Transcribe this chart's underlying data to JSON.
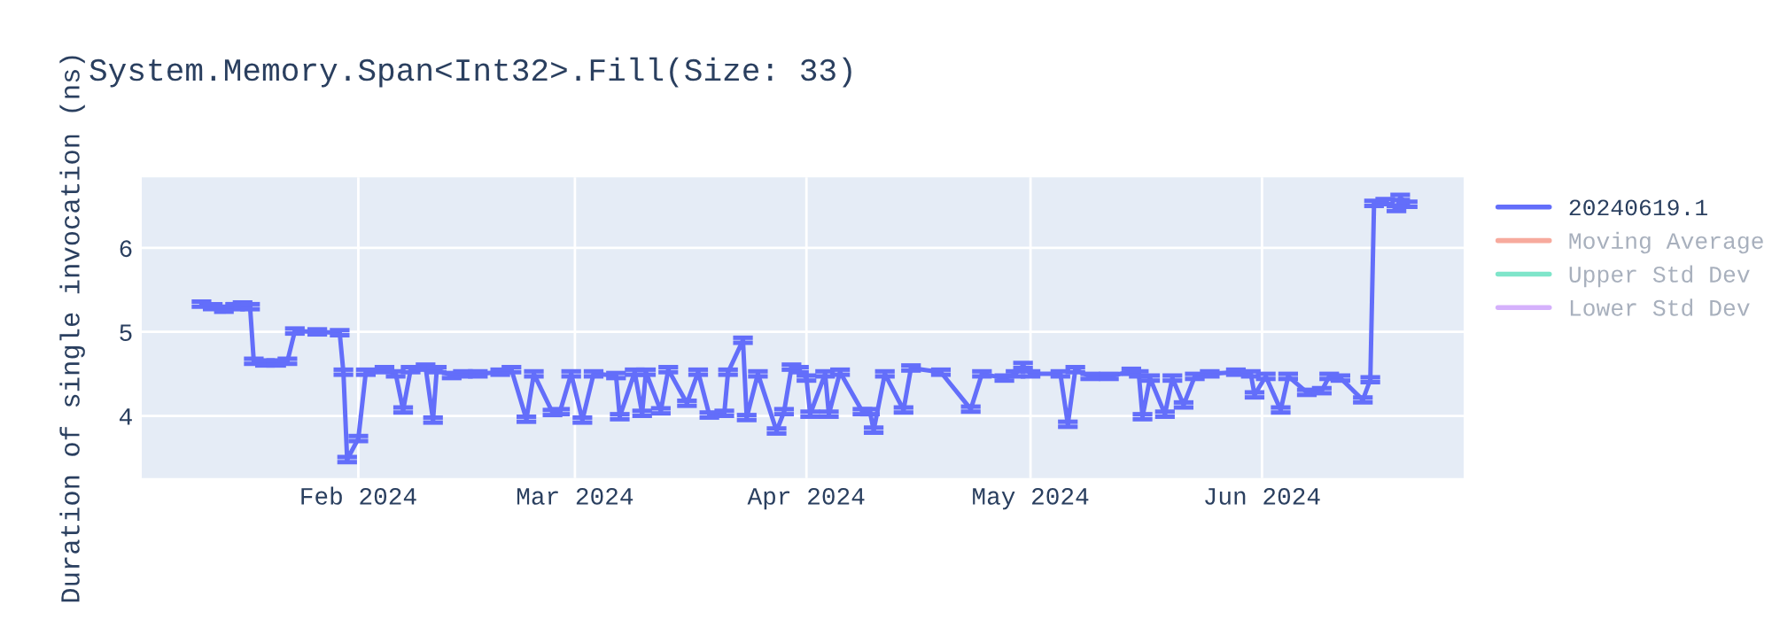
{
  "chart_data": {
    "type": "line",
    "title": "System.Memory.Span<Int32>.Fill(Size: 33)",
    "ylabel": "Duration of single invocation (ns)",
    "x": [
      "2024-01-11",
      "2024-01-12T12:00",
      "2024-01-14",
      "2024-01-15T12:00",
      "2024-01-16T12:00",
      "2024-01-17T12:00",
      "2024-01-18",
      "2024-01-19T12:00",
      "2024-01-21",
      "2024-01-22T12:00",
      "2024-01-23T12:00",
      "2024-01-26T12:00",
      "2024-01-29T12:00",
      "2024-01-30",
      "2024-01-30T12:00",
      "2024-02-01",
      "2024-02-02",
      "2024-02-04T12:00",
      "2024-02-06",
      "2024-02-07",
      "2024-02-08",
      "2024-02-10",
      "2024-02-11",
      "2024-02-11T12:00",
      "2024-02-13T12:00",
      "2024-02-15",
      "2024-02-17",
      "2024-02-20",
      "2024-02-21T12:00",
      "2024-02-23T12:00",
      "2024-02-24T12:00",
      "2024-02-27",
      "2024-02-28",
      "2024-02-29T12:00",
      "2024-03-02",
      "2024-03-03T12:00",
      "2024-03-06T12:00",
      "2024-03-07",
      "2024-03-09",
      "2024-03-10",
      "2024-03-10T12:00",
      "2024-03-12T12:00",
      "2024-03-13T12:00",
      "2024-03-16",
      "2024-03-17T12:00",
      "2024-03-19",
      "2024-03-21",
      "2024-03-21T12:00",
      "2024-03-23T12:00",
      "2024-03-24",
      "2024-03-25T12:00",
      "2024-03-28",
      "2024-03-29",
      "2024-03-30",
      "2024-03-31",
      "2024-04-01",
      "2024-04-01T12:00",
      "2024-04-03T12:00",
      "2024-04-04",
      "2024-04-05T12:00",
      "2024-04-08T12:00",
      "2024-04-09T12:00",
      "2024-04-10",
      "2024-04-11T12:00",
      "2024-04-14",
      "2024-04-15",
      "2024-04-19",
      "2024-04-23",
      "2024-04-24T12:00",
      "2024-04-27T12:00",
      "2024-04-29",
      "2024-04-30",
      "2024-05-01",
      "2024-05-05",
      "2024-05-06",
      "2024-05-07",
      "2024-05-09",
      "2024-05-11T12:00",
      "2024-05-14T12:00",
      "2024-05-15T12:00",
      "2024-05-16",
      "2024-05-17",
      "2024-05-19",
      "2024-05-20",
      "2024-05-21T12:00",
      "2024-05-23",
      "2024-05-25",
      "2024-05-28T12:00",
      "2024-05-30T12:00",
      "2024-05-31",
      "2024-06-01T12:00",
      "2024-06-03T12:00",
      "2024-06-04T12:00",
      "2024-06-07",
      "2024-06-09",
      "2024-06-10",
      "2024-06-11T12:00",
      "2024-06-14T12:00",
      "2024-06-15T12:00",
      "2024-06-16",
      "2024-06-17T12:00",
      "2024-06-19",
      "2024-06-19T12:00",
      "2024-06-20T12:00"
    ],
    "series": [
      {
        "name": "20240619.1",
        "color": "#636efa",
        "values": [
          5.33,
          5.3,
          5.27,
          5.3,
          5.32,
          5.3,
          4.65,
          4.63,
          4.63,
          4.65,
          5.01,
          5.0,
          4.99,
          4.52,
          3.48,
          3.73,
          4.52,
          4.55,
          4.5,
          4.07,
          4.55,
          4.58,
          3.95,
          4.55,
          4.48,
          4.5,
          4.5,
          4.52,
          4.55,
          3.96,
          4.5,
          4.04,
          4.05,
          4.5,
          3.95,
          4.5,
          4.48,
          3.99,
          4.52,
          4.03,
          4.52,
          4.06,
          4.55,
          4.15,
          4.52,
          4.01,
          4.03,
          4.52,
          4.9,
          3.98,
          4.5,
          3.82,
          4.05,
          4.58,
          4.55,
          4.45,
          4.02,
          4.5,
          4.02,
          4.52,
          4.05,
          4.05,
          3.83,
          4.5,
          4.07,
          4.57,
          4.52,
          4.08,
          4.5,
          4.45,
          4.5,
          4.6,
          4.5,
          4.5,
          3.9,
          4.55,
          4.47,
          4.47,
          4.53,
          4.5,
          3.99,
          4.45,
          4.02,
          4.45,
          4.13,
          4.47,
          4.5,
          4.52,
          4.5,
          4.25,
          4.47,
          4.07,
          4.47,
          4.28,
          4.3,
          4.47,
          4.45,
          4.19,
          4.43,
          6.53,
          6.55,
          6.47,
          6.6,
          6.52
        ],
        "errors": [
          0.03,
          0.03,
          0.03,
          0.03,
          0.03,
          0.03,
          0.03,
          0.03,
          0.03,
          0.03,
          0.03,
          0.03,
          0.03,
          0.03,
          0.03,
          0.03,
          0.03,
          0.03,
          0.03,
          0.03,
          0.03,
          0.03,
          0.03,
          0.03,
          0.03,
          0.03,
          0.03,
          0.03,
          0.03,
          0.03,
          0.03,
          0.03,
          0.03,
          0.03,
          0.03,
          0.03,
          0.03,
          0.03,
          0.03,
          0.03,
          0.03,
          0.03,
          0.03,
          0.03,
          0.03,
          0.03,
          0.03,
          0.03,
          0.03,
          0.03,
          0.03,
          0.03,
          0.03,
          0.03,
          0.03,
          0.03,
          0.03,
          0.03,
          0.03,
          0.03,
          0.03,
          0.03,
          0.03,
          0.03,
          0.03,
          0.03,
          0.03,
          0.03,
          0.03,
          0.03,
          0.03,
          0.03,
          0.03,
          0.03,
          0.03,
          0.03,
          0.03,
          0.03,
          0.03,
          0.03,
          0.03,
          0.03,
          0.03,
          0.03,
          0.03,
          0.03,
          0.03,
          0.03,
          0.03,
          0.03,
          0.03,
          0.03,
          0.03,
          0.03,
          0.03,
          0.03,
          0.03,
          0.03,
          0.03,
          0.03,
          0.03,
          0.03,
          0.03,
          0.03
        ]
      },
      {
        "name": "Moving Average",
        "color": "#ef553b",
        "values": [
          null,
          null,
          null,
          null,
          null,
          null,
          null,
          null,
          null,
          null,
          null,
          null,
          null,
          null,
          null,
          null,
          null,
          null,
          null,
          null,
          null,
          null,
          null,
          null,
          null,
          null,
          null,
          null,
          null,
          null,
          null,
          null,
          null,
          null,
          null,
          null,
          null,
          null,
          null,
          null,
          null,
          null,
          null,
          null,
          null,
          null,
          null,
          null,
          null,
          null,
          null,
          null,
          null,
          null,
          null,
          null,
          null,
          null,
          null,
          null,
          null,
          null,
          null,
          null,
          null,
          null,
          null,
          null,
          null,
          null,
          null,
          null,
          null,
          null,
          null,
          null,
          null,
          null,
          null,
          null,
          null,
          null,
          null,
          null,
          null,
          null,
          null,
          null,
          null,
          null,
          null,
          null,
          null,
          null,
          null,
          null,
          null,
          null,
          null,
          null,
          null,
          null,
          null,
          null
        ]
      },
      {
        "name": "Upper Std Dev",
        "color": "#00cc96",
        "values": [
          null,
          null,
          null,
          null,
          null,
          null,
          null,
          null,
          null,
          null,
          null,
          null,
          null,
          null,
          null,
          null,
          null,
          null,
          null,
          null,
          null,
          null,
          null,
          null,
          null,
          null,
          null,
          null,
          null,
          null,
          null,
          null,
          null,
          null,
          null,
          null,
          null,
          null,
          null,
          null,
          null,
          null,
          null,
          null,
          null,
          null,
          null,
          null,
          null,
          null,
          null,
          null,
          null,
          null,
          null,
          null,
          null,
          null,
          null,
          null,
          null,
          null,
          null,
          null,
          null,
          null,
          null,
          null,
          null,
          null,
          null,
          null,
          null,
          null,
          null,
          null,
          null,
          null,
          null,
          null,
          null,
          null,
          null,
          null,
          null,
          null,
          null,
          null,
          null,
          null,
          null,
          null,
          null,
          null,
          null,
          null,
          null,
          null,
          null,
          null,
          null,
          null,
          null,
          null
        ]
      },
      {
        "name": "Lower Std Dev",
        "color": "#ab63fa",
        "values": [
          null,
          null,
          null,
          null,
          null,
          null,
          null,
          null,
          null,
          null,
          null,
          null,
          null,
          null,
          null,
          null,
          null,
          null,
          null,
          null,
          null,
          null,
          null,
          null,
          null,
          null,
          null,
          null,
          null,
          null,
          null,
          null,
          null,
          null,
          null,
          null,
          null,
          null,
          null,
          null,
          null,
          null,
          null,
          null,
          null,
          null,
          null,
          null,
          null,
          null,
          null,
          null,
          null,
          null,
          null,
          null,
          null,
          null,
          null,
          null,
          null,
          null,
          null,
          null,
          null,
          null,
          null,
          null,
          null,
          null,
          null,
          null,
          null,
          null,
          null,
          null,
          null,
          null,
          null,
          null,
          null,
          null,
          null,
          null,
          null,
          null,
          null,
          null,
          null,
          null,
          null,
          null,
          null,
          null,
          null,
          null,
          null,
          null,
          null,
          null,
          null,
          null,
          null,
          null
        ]
      }
    ],
    "xlim": [
      "2024-01-03",
      "2024-06-28"
    ],
    "xticks": [
      {
        "value": "2024-02-01",
        "label": "Feb 2024"
      },
      {
        "value": "2024-03-01",
        "label": "Mar 2024"
      },
      {
        "value": "2024-04-01",
        "label": "Apr 2024"
      },
      {
        "value": "2024-05-01",
        "label": "May 2024"
      },
      {
        "value": "2024-06-01",
        "label": "Jun 2024"
      }
    ],
    "ylim": [
      3.26,
      6.84
    ],
    "yticks": [
      4,
      5,
      6
    ],
    "grid": true,
    "legend": "top right",
    "marker": "none",
    "line_style": "solid"
  }
}
